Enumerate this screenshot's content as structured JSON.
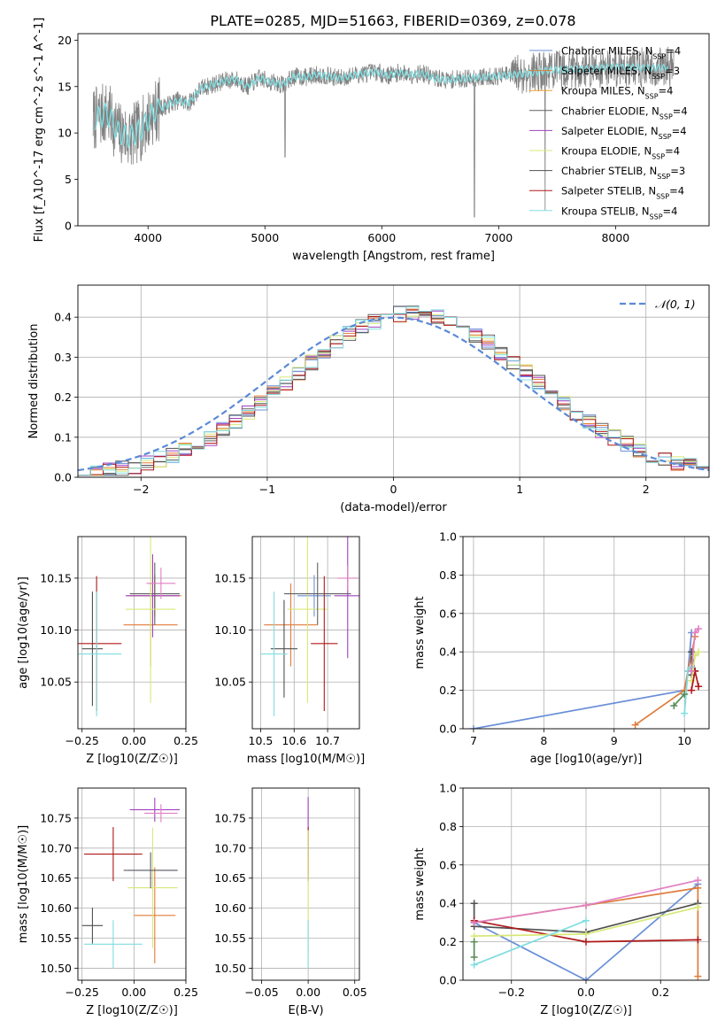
{
  "figure": {
    "title": "PLATE=0285, MJD=51663, FIBERID=0369, z=0.078"
  },
  "colors": {
    "Chabrier MILES": "#6a8fd8",
    "Salpeter MILES": "#e07b39",
    "Kroupa MILES": "#f0a030",
    "Chabrier ELODIE": "#606060",
    "Salpeter ELODIE": "#a040c0",
    "Kroupa ELODIE": "#d8e878",
    "Chabrier STELIB": "#505050",
    "Salpeter STELIB": "#b01818",
    "Kroupa STELIB": "#80dde0",
    "data": "#808080",
    "extra_pink": "#e080c0",
    "extra_green": "#5a8a5a"
  },
  "chart_data": [
    {
      "id": "spectrum",
      "type": "line",
      "xlabel": "wavelength [Angstrom, rest frame]",
      "ylabel": "Flux [f_λ10^-17 erg cm^-2 s^-1 A^-1]",
      "xlim": [
        3400,
        8800
      ],
      "ylim": [
        0,
        20.7
      ],
      "xticks": [
        4000,
        5000,
        6000,
        7000,
        8000
      ],
      "yticks": [
        0,
        5,
        10,
        15,
        20
      ],
      "continuum": {
        "x": [
          3550,
          3650,
          3750,
          3850,
          3950,
          4050,
          4150,
          4250,
          4350,
          4450,
          4550,
          4650,
          4750,
          4850,
          4950,
          5050,
          5150,
          5250,
          5350,
          5450,
          5550,
          5650,
          5750,
          5850,
          5950,
          6050,
          6150,
          6250,
          6350,
          6450,
          6550,
          6650,
          6750,
          6850,
          6950,
          7050,
          7150,
          7250,
          7350,
          7450,
          7550,
          7650,
          7750,
          7850,
          7950,
          8050,
          8150,
          8250,
          8350,
          8450
        ],
        "y": [
          11.5,
          12.2,
          10.0,
          9.5,
          10.5,
          12.3,
          12.9,
          13.5,
          13.2,
          14.8,
          15.2,
          15.6,
          15.8,
          15.0,
          15.9,
          15.5,
          15.2,
          16.1,
          16.0,
          16.3,
          16.1,
          15.9,
          16.2,
          16.4,
          16.6,
          16.2,
          16.5,
          16.3,
          16.4,
          15.9,
          15.7,
          15.8,
          15.9,
          16.0,
          16.1,
          16.2,
          16.3,
          16.4,
          16.6,
          16.8,
          16.8,
          16.9,
          16.9,
          17.0,
          17.1,
          17.1,
          17.1,
          17.0,
          17.0,
          17.1
        ]
      },
      "series": [
        {
          "name": "Chabrier MILES",
          "nssp": "4"
        },
        {
          "name": "Salpeter MILES",
          "nssp": "3"
        },
        {
          "name": "Kroupa MILES",
          "nssp": "4"
        },
        {
          "name": "Chabrier ELODIE",
          "nssp": "4"
        },
        {
          "name": "Salpeter ELODIE",
          "nssp": "4"
        },
        {
          "name": "Kroupa ELODIE",
          "nssp": "4"
        },
        {
          "name": "Chabrier STELIB",
          "nssp": "3"
        },
        {
          "name": "Salpeter STELIB",
          "nssp": "4"
        },
        {
          "name": "Kroupa STELIB",
          "nssp": "4"
        }
      ],
      "legend": "upper right"
    },
    {
      "id": "residuals",
      "type": "histogram",
      "xlabel": "(data-model)/error",
      "ylabel": "Normed distribution",
      "xlim": [
        -2.5,
        2.5
      ],
      "ylim": [
        0,
        0.48
      ],
      "xticks": [
        -2,
        -1,
        0,
        1,
        2
      ],
      "yticks": [
        0.0,
        0.1,
        0.2,
        0.3,
        0.4
      ],
      "bin_width": 0.1,
      "bin_start": -2.5,
      "legend": {
        "label": "𝒩(0, 1)",
        "position": "upper right"
      },
      "grid": true
    },
    {
      "id": "age_vs_Z",
      "type": "errorbar",
      "xlabel": "Z [log10(Z/Z☉)]",
      "ylabel": "age  [log10(age/yr)]",
      "xlim": [
        -0.27,
        0.25
      ],
      "ylim": [
        10.005,
        10.19
      ],
      "xticks": [
        -0.25,
        0.0,
        0.25
      ],
      "xticklabels": [
        "−0.25",
        "0.00",
        "0.25"
      ],
      "yticks": [
        10.05,
        10.1,
        10.15
      ],
      "points": [
        {
          "series": "Chabrier MILES",
          "x": 0.1,
          "xerr": 0.12,
          "y": 10.133,
          "yerr": 0.02
        },
        {
          "series": "Salpeter MILES",
          "x": 0.08,
          "xerr": 0.13,
          "y": 10.105,
          "yerr": 0.04
        },
        {
          "series": "Kroupa MILES",
          "x": 0.1,
          "xerr": 0.13,
          "y": 10.133,
          "yerr": 0.02
        },
        {
          "series": "Chabrier ELODIE",
          "x": 0.1,
          "xerr": 0.12,
          "y": 10.135,
          "yerr": 0.03
        },
        {
          "series": "Salpeter ELODIE",
          "x": 0.09,
          "xerr": 0.13,
          "y": 10.133,
          "yerr": 0.04
        },
        {
          "series": "Kroupa ELODIE",
          "x": 0.08,
          "xerr": 0.12,
          "y": 10.12,
          "yerr": 0.09
        },
        {
          "series": "Chabrier STELIB",
          "x": -0.2,
          "xerr": 0.05,
          "y": 10.082,
          "yerr": 0.055
        },
        {
          "series": "Salpeter STELIB",
          "x": -0.18,
          "xerr": 0.12,
          "y": 10.087,
          "yerr": 0.065
        },
        {
          "series": "Kroupa STELIB",
          "x": -0.18,
          "xerr": 0.12,
          "y": 10.077,
          "yerr": 0.06
        },
        {
          "series": "extra_pink",
          "x": 0.13,
          "xerr": 0.07,
          "y": 10.145,
          "yerr": 0.015
        }
      ]
    },
    {
      "id": "age_vs_mass",
      "type": "errorbar",
      "xlabel": "mass [log10(M/M☉)]",
      "ylabel": "",
      "xlim": [
        10.475,
        10.795
      ],
      "ylim": [
        10.005,
        10.19
      ],
      "xticks": [
        10.5,
        10.6,
        10.7
      ],
      "yticks": [
        10.05,
        10.1,
        10.15
      ],
      "points": [
        {
          "series": "Chabrier MILES",
          "x": 10.66,
          "xerr": 0.05,
          "y": 10.133,
          "yerr": 0.02
        },
        {
          "series": "Salpeter MILES",
          "x": 10.59,
          "xerr": 0.08,
          "y": 10.105,
          "yerr": 0.04
        },
        {
          "series": "Kroupa ELODIE",
          "x": 10.64,
          "xerr": 0.06,
          "y": 10.12,
          "yerr": 0.09
        },
        {
          "series": "Chabrier ELODIE",
          "x": 10.67,
          "xerr": 0.1,
          "y": 10.135,
          "yerr": 0.03
        },
        {
          "series": "Salpeter ELODIE",
          "x": 10.76,
          "xerr": 0.04,
          "y": 10.133,
          "yerr": 0.06
        },
        {
          "series": "Chabrier STELIB",
          "x": 10.57,
          "xerr": 0.04,
          "y": 10.082,
          "yerr": 0.047
        },
        {
          "series": "Salpeter STELIB",
          "x": 10.69,
          "xerr": 0.04,
          "y": 10.087,
          "yerr": 0.065
        },
        {
          "series": "Kroupa STELIB",
          "x": 10.54,
          "xerr": 0.04,
          "y": 10.077,
          "yerr": 0.06
        },
        {
          "series": "extra_pink",
          "x": 10.76,
          "xerr": 0.03,
          "y": 10.15,
          "yerr": 0.012
        }
      ]
    },
    {
      "id": "mass_weight_vs_age",
      "type": "line",
      "xlabel": "age  [log10(age/yr)]",
      "ylabel": "mass weight",
      "xlim": [
        6.85,
        10.35
      ],
      "ylim": [
        0,
        1.0
      ],
      "xticks": [
        7,
        8,
        9,
        10
      ],
      "yticks": [
        0.0,
        0.2,
        0.4,
        0.6,
        0.8,
        1.0
      ],
      "series": [
        {
          "name": "Chabrier MILES",
          "x": [
            7.0,
            10.0,
            10.05,
            10.1
          ],
          "y": [
            0.0,
            0.2,
            0.3,
            0.5
          ]
        },
        {
          "name": "Salpeter MILES",
          "x": [
            9.3,
            10.0,
            10.05,
            10.15
          ],
          "y": [
            0.02,
            0.2,
            0.3,
            0.48
          ]
        },
        {
          "name": "Chabrier STELIB",
          "x": [
            10.1,
            10.1,
            10.15
          ],
          "y": [
            0.28,
            0.4,
            0.3
          ]
        },
        {
          "name": "Kroupa ELODIE",
          "x": [
            10.1,
            10.15,
            10.2
          ],
          "y": [
            0.25,
            0.38,
            0.4
          ]
        },
        {
          "name": "Salpeter STELIB",
          "x": [
            10.1,
            10.15,
            10.2
          ],
          "y": [
            0.2,
            0.3,
            0.22
          ]
        },
        {
          "name": "Kroupa STELIB",
          "x": [
            10.0,
            10.05,
            10.1
          ],
          "y": [
            0.08,
            0.3,
            0.32
          ]
        },
        {
          "name": "extra_green",
          "x": [
            9.85,
            10.0
          ],
          "y": [
            0.12,
            0.18
          ]
        },
        {
          "name": "extra_pink",
          "x": [
            10.1,
            10.15,
            10.2
          ],
          "y": [
            0.3,
            0.5,
            0.52
          ]
        }
      ],
      "grid": true
    },
    {
      "id": "mass_vs_Z",
      "type": "errorbar",
      "xlabel": "Z [log10(Z/Z☉)]",
      "ylabel": "mass [log10(M/M☉)]",
      "xlim": [
        -0.27,
        0.25
      ],
      "ylim": [
        10.48,
        10.8
      ],
      "xticks": [
        -0.25,
        0.0,
        0.25
      ],
      "xticklabels": [
        "−0.25",
        "0.00",
        "0.25"
      ],
      "yticks": [
        10.5,
        10.55,
        10.6,
        10.65,
        10.7,
        10.75
      ],
      "points": [
        {
          "series": "Chabrier MILES",
          "x": 0.09,
          "xerr": 0.12,
          "y": 10.663,
          "yerr": 0.03
        },
        {
          "series": "Salpeter MILES",
          "x": 0.1,
          "xerr": 0.1,
          "y": 10.588,
          "yerr": 0.08
        },
        {
          "series": "Kroupa ELODIE",
          "x": 0.09,
          "xerr": 0.12,
          "y": 10.634,
          "yerr": 0.1
        },
        {
          "series": "Chabrier ELODIE",
          "x": 0.08,
          "xerr": 0.13,
          "y": 10.663,
          "yerr": 0.03
        },
        {
          "series": "Salpeter ELODIE",
          "x": 0.1,
          "xerr": 0.12,
          "y": 10.764,
          "yerr": 0.02
        },
        {
          "series": "Chabrier STELIB",
          "x": -0.2,
          "xerr": 0.05,
          "y": 10.571,
          "yerr": 0.03
        },
        {
          "series": "Salpeter STELIB",
          "x": -0.1,
          "xerr": 0.14,
          "y": 10.69,
          "yerr": 0.045
        },
        {
          "series": "Kroupa STELIB",
          "x": -0.1,
          "xerr": 0.14,
          "y": 10.54,
          "yerr": 0.04
        },
        {
          "series": "extra_pink",
          "x": 0.13,
          "xerr": 0.08,
          "y": 10.758,
          "yerr": 0.015
        }
      ]
    },
    {
      "id": "mass_vs_ebv",
      "type": "errorbar",
      "xlabel": "E(B-V)",
      "ylabel": "",
      "xlim": [
        -0.06,
        0.055
      ],
      "ylim": [
        10.48,
        10.8
      ],
      "xticks": [
        -0.05,
        0.0,
        0.05
      ],
      "xticklabels": [
        "−0.05",
        "0.00",
        "0.05"
      ],
      "yticks": [
        10.5,
        10.55,
        10.6,
        10.65,
        10.7,
        10.75
      ],
      "points": [
        {
          "series": "Salpeter ELODIE",
          "x": 0.0,
          "y": 10.72,
          "yerr": 0.065
        },
        {
          "series": "Salpeter STELIB",
          "x": 0.0,
          "y": 10.69,
          "yerr": 0.045
        },
        {
          "series": "Kroupa ELODIE",
          "x": 0.0,
          "y": 10.63,
          "yerr": 0.1
        },
        {
          "series": "Kroupa STELIB",
          "x": 0.0,
          "y": 10.54,
          "yerr": 0.04
        }
      ]
    },
    {
      "id": "mass_weight_vs_Z",
      "type": "line",
      "xlabel": "Z [log10(Z/Z☉)]",
      "ylabel": "mass weight",
      "xlim": [
        -0.33,
        0.33
      ],
      "ylim": [
        0,
        1.0
      ],
      "xticks": [
        -0.2,
        0.0,
        0.2
      ],
      "xticklabels": [
        "−0.2",
        "0.0",
        "0.2"
      ],
      "yticks": [
        0.0,
        0.2,
        0.4,
        0.6,
        0.8,
        1.0
      ],
      "series": [
        {
          "name": "Chabrier MILES",
          "x": [
            -0.3,
            0.0,
            0.3
          ],
          "y": [
            0.3,
            0.0,
            0.5
          ]
        },
        {
          "name": "Salpeter MILES",
          "x": [
            -0.3,
            0.0,
            0.3,
            0.3
          ],
          "y": [
            0.3,
            0.39,
            0.48,
            0.02
          ]
        },
        {
          "name": "Chabrier STELIB",
          "x": [
            -0.3,
            -0.3,
            0.0,
            0.3
          ],
          "y": [
            0.4,
            0.28,
            0.25,
            0.4
          ]
        },
        {
          "name": "Salpeter STELIB",
          "x": [
            -0.3,
            0.0,
            0.3
          ],
          "y": [
            0.31,
            0.2,
            0.21
          ]
        },
        {
          "name": "Kroupa ELODIE",
          "x": [
            -0.3,
            0.0,
            0.3
          ],
          "y": [
            0.23,
            0.24,
            0.38
          ]
        },
        {
          "name": "Kroupa STELIB",
          "x": [
            -0.3,
            0.0
          ],
          "y": [
            0.08,
            0.31
          ]
        },
        {
          "name": "extra_pink",
          "x": [
            -0.3,
            0.0,
            0.3
          ],
          "y": [
            0.3,
            0.39,
            0.52
          ]
        },
        {
          "name": "extra_green",
          "x": [
            -0.3,
            -0.3
          ],
          "y": [
            0.12,
            0.2
          ]
        }
      ],
      "grid": true
    }
  ]
}
